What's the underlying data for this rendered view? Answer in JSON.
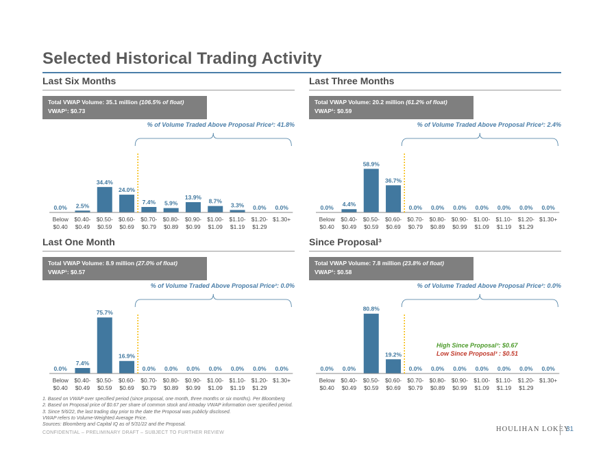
{
  "page": {
    "title": "Selected Historical Trading Activity",
    "hilo_high": "High Since Proposal³: $0.67",
    "hilo_low": "Low Since Proposal³ : $0.51",
    "footnotes": [
      "1.  Based on VWAP over specified period (since proposal, one month, three months or six months). Per Bloomberg",
      "2.  Based on Proposal price of $0.67 per share of common stock and intraday VWAP information over specified period.",
      "3.  Since 5/6/22, the last trading day prior to the date the Proposal was publicly disclosed.",
      "VWAP refers to Volume-Weighted Average Price.",
      "Sources: Bloomberg and Capital IQ as of 5/31/22 and the Proposal."
    ],
    "confidential": "CONFIDENTIAL – PRELIMINARY DRAFT – SUBJECT TO FURTHER REVIEW",
    "brand": "HOULIHAN LOKEY",
    "page_number": "31"
  },
  "colors": {
    "bar": "#41789f",
    "label": "#41789f",
    "dotted": "#f5b800",
    "bracket": "#41789f"
  },
  "chart_data": [
    {
      "type": "bar",
      "title": "Last Six Months",
      "vwap_volume": "Total VWAP Volume: 35.1 million",
      "vwap_float": "(106.5% of float)",
      "vwap_price": "VWAP¹: $0.73",
      "above_label": "% of Volume Traded Above Proposal Price²: 41.8%",
      "categories": [
        [
          "Below",
          "$0.40"
        ],
        [
          "$0.40-",
          "$0.49"
        ],
        [
          "$0.50-",
          "$0.59"
        ],
        [
          "$0.60-",
          "$0.69"
        ],
        [
          "$0.70-",
          "$0.79"
        ],
        [
          "$0.80-",
          "$0.89"
        ],
        [
          "$0.90-",
          "$0.99"
        ],
        [
          "$1.00-",
          "$1.09"
        ],
        [
          "$1.10-",
          "$1.19"
        ],
        [
          "$1.20-",
          "$1.29"
        ],
        [
          "$1.30+",
          ""
        ]
      ],
      "values": [
        0.0,
        2.5,
        34.4,
        24.0,
        7.4,
        5.9,
        13.9,
        8.7,
        3.3,
        0.0,
        0.0
      ],
      "value_labels": [
        "0.0%",
        "2.5%",
        "34.4%",
        "24.0%",
        "7.4%",
        "5.9%",
        "13.9%",
        "8.7%",
        "3.3%",
        "0.0%",
        "0.0%"
      ],
      "ylim": [
        0,
        100
      ]
    },
    {
      "type": "bar",
      "title": "Last Three Months",
      "vwap_volume": "Total VWAP Volume: 20.2 million",
      "vwap_float": "(61.2% of float)",
      "vwap_price": "VWAP¹: $0.59",
      "above_label": "% of Volume Traded Above Proposal Price²: 2.4%",
      "categories": [
        [
          "Below",
          "$0.40"
        ],
        [
          "$0.40-",
          "$0.49"
        ],
        [
          "$0.50-",
          "$0.59"
        ],
        [
          "$0.60-",
          "$0.69"
        ],
        [
          "$0.70-",
          "$0.79"
        ],
        [
          "$0.80-",
          "$0.89"
        ],
        [
          "$0.90-",
          "$0.99"
        ],
        [
          "$1.00-",
          "$1.09"
        ],
        [
          "$1.10-",
          "$1.19"
        ],
        [
          "$1.20-",
          "$1.29"
        ],
        [
          "$1.30+",
          ""
        ]
      ],
      "values": [
        0.0,
        4.4,
        58.9,
        36.7,
        0.0,
        0.0,
        0.0,
        0.0,
        0.0,
        0.0,
        0.0
      ],
      "value_labels": [
        "0.0%",
        "4.4%",
        "58.9%",
        "36.7%",
        "0.0%",
        "0.0%",
        "0.0%",
        "0.0%",
        "0.0%",
        "0.0%",
        "0.0%"
      ],
      "ylim": [
        0,
        100
      ]
    },
    {
      "type": "bar",
      "title": "Last One Month",
      "vwap_volume": "Total VWAP Volume: 8.9 million",
      "vwap_float": "(27.0% of float)",
      "vwap_price": "VWAP¹: $0.57",
      "above_label": "% of Volume Traded Above Proposal Price²: 0.0%",
      "categories": [
        [
          "Below",
          "$0.40"
        ],
        [
          "$0.40-",
          "$0.49"
        ],
        [
          "$0.50-",
          "$0.59"
        ],
        [
          "$0.60-",
          "$0.69"
        ],
        [
          "$0.70-",
          "$0.79"
        ],
        [
          "$0.80-",
          "$0.89"
        ],
        [
          "$0.90-",
          "$0.99"
        ],
        [
          "$1.00-",
          "$1.09"
        ],
        [
          "$1.10-",
          "$1.19"
        ],
        [
          "$1.20-",
          "$1.29"
        ],
        [
          "$1.30+",
          ""
        ]
      ],
      "values": [
        0.0,
        7.4,
        75.7,
        16.9,
        0.0,
        0.0,
        0.0,
        0.0,
        0.0,
        0.0,
        0.0
      ],
      "value_labels": [
        "0.0%",
        "7.4%",
        "75.7%",
        "16.9%",
        "0.0%",
        "0.0%",
        "0.0%",
        "0.0%",
        "0.0%",
        "0.0%",
        "0.0%"
      ],
      "ylim": [
        0,
        100
      ]
    },
    {
      "type": "bar",
      "title": "Since Proposal³",
      "vwap_volume": "Total VWAP Volume: 7.8 million",
      "vwap_float": "(23.8% of float)",
      "vwap_price": "VWAP¹: $0.58",
      "above_label": "% of Volume Traded Above Proposal Price²: 0.0%",
      "categories": [
        [
          "Below",
          "$0.40"
        ],
        [
          "$0.40-",
          "$0.49"
        ],
        [
          "$0.50-",
          "$0.59"
        ],
        [
          "$0.60-",
          "$0.69"
        ],
        [
          "$0.70-",
          "$0.79"
        ],
        [
          "$0.80-",
          "$0.89"
        ],
        [
          "$0.90-",
          "$0.99"
        ],
        [
          "$1.00-",
          "$1.09"
        ],
        [
          "$1.10-",
          "$1.19"
        ],
        [
          "$1.20-",
          "$1.29"
        ],
        [
          "$1.30+",
          ""
        ]
      ],
      "values": [
        0.0,
        0.0,
        80.8,
        19.2,
        0.0,
        0.0,
        0.0,
        0.0,
        0.0,
        0.0,
        0.0
      ],
      "value_labels": [
        "0.0%",
        "0.0%",
        "80.8%",
        "19.2%",
        "0.0%",
        "0.0%",
        "0.0%",
        "0.0%",
        "0.0%",
        "0.0%",
        "0.0%"
      ],
      "ylim": [
        0,
        100
      ]
    }
  ]
}
